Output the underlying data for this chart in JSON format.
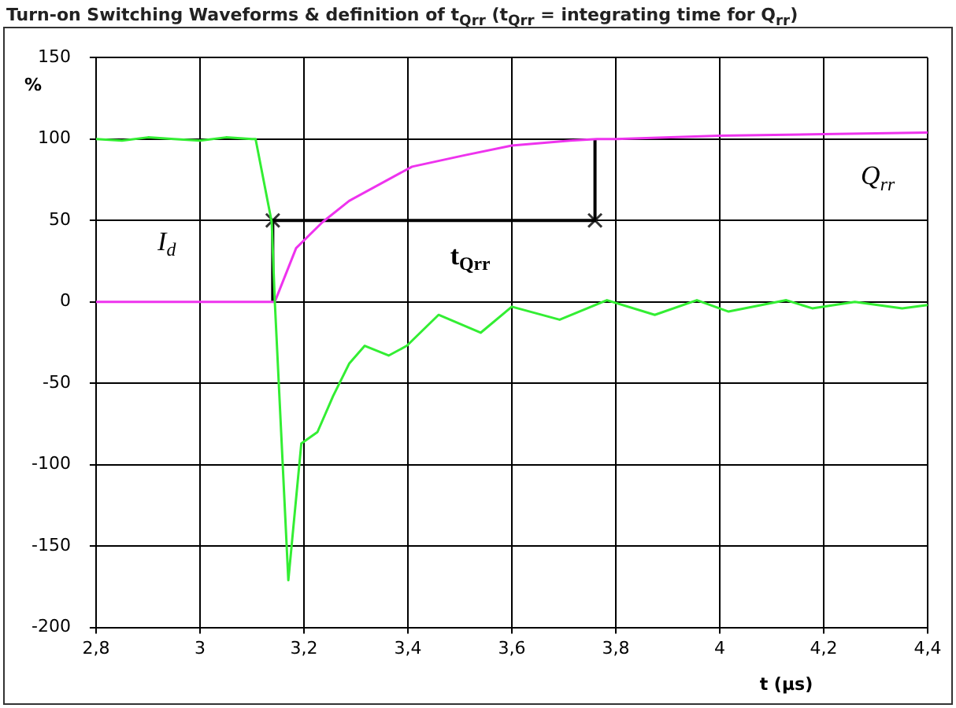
{
  "chart_data": {
    "type": "line",
    "title": "Turn-on Switching Waveforms & definition of t$_{Qrr}$ (t$_{Qrr}$ = integrating time for Q$_{rr}$)",
    "xlabel": "t (µs)",
    "ylabel": "%",
    "xlim": [
      2.8,
      4.4
    ],
    "xticks": [
      {
        "value": 2.8,
        "label": "2,8"
      },
      3,
      {
        "value": 3.2,
        "label": "3,2"
      },
      {
        "value": 3.4,
        "label": "3,4"
      },
      {
        "value": 3.6,
        "label": "3,6"
      },
      {
        "value": 3.8,
        "label": "3,8"
      },
      4,
      {
        "value": 4.2,
        "label": "4,2"
      },
      {
        "value": 4.4,
        "label": "4,4"
      }
    ],
    "ylim": [
      -200,
      150
    ],
    "yticks": [
      -200,
      -150,
      -100,
      -50,
      0,
      50,
      100,
      150
    ],
    "grid": true,
    "legend": false,
    "marker": "none",
    "line_style": "solid",
    "series": [
      {
        "color": "#33ee33",
        "x": [
          2.8,
          2.85,
          2.9,
          2.95,
          3.0,
          3.05,
          3.1,
          3.107,
          3.138,
          3.144,
          3.17,
          3.195,
          3.226,
          3.256,
          3.287,
          3.317,
          3.363,
          3.398,
          3.459,
          3.54,
          3.6,
          3.692,
          3.783,
          3.875,
          3.956,
          4.017,
          4.128,
          4.178,
          4.26,
          4.351,
          4.4
        ],
        "values": [
          100,
          99,
          101,
          100,
          99,
          101,
          100,
          100,
          49,
          0,
          -171,
          -87,
          -80,
          -58,
          -38,
          -27,
          -33,
          -27,
          -8,
          -19,
          -3,
          -11,
          1,
          -8,
          1,
          -6,
          1,
          -4,
          0,
          -4,
          -2
        ]
      },
      {
        "color": "#ee33ee",
        "x": [
          2.8,
          3.138,
          3.144,
          3.185,
          3.236,
          3.287,
          3.408,
          3.509,
          3.6,
          3.712,
          3.764,
          3.8,
          4.0,
          4.2,
          4.4
        ],
        "values": [
          0,
          0,
          0,
          33,
          49,
          62,
          83,
          90,
          96,
          99,
          100,
          100,
          102,
          103,
          104
        ]
      },
      {
        "color": "#000000",
        "x": [
          3.14,
          3.14,
          3.76,
          3.76
        ],
        "values": [
          0,
          50,
          50,
          100
        ]
      },
      {
        "type": "scatter",
        "marker": "cross",
        "color": "#333333",
        "x": [
          3.14,
          3.76
        ],
        "values": [
          50,
          50
        ]
      }
    ],
    "annotations": [
      "I$_{d}$",
      "Q$_{rr}$",
      "t$_{Qrr}$"
    ]
  }
}
